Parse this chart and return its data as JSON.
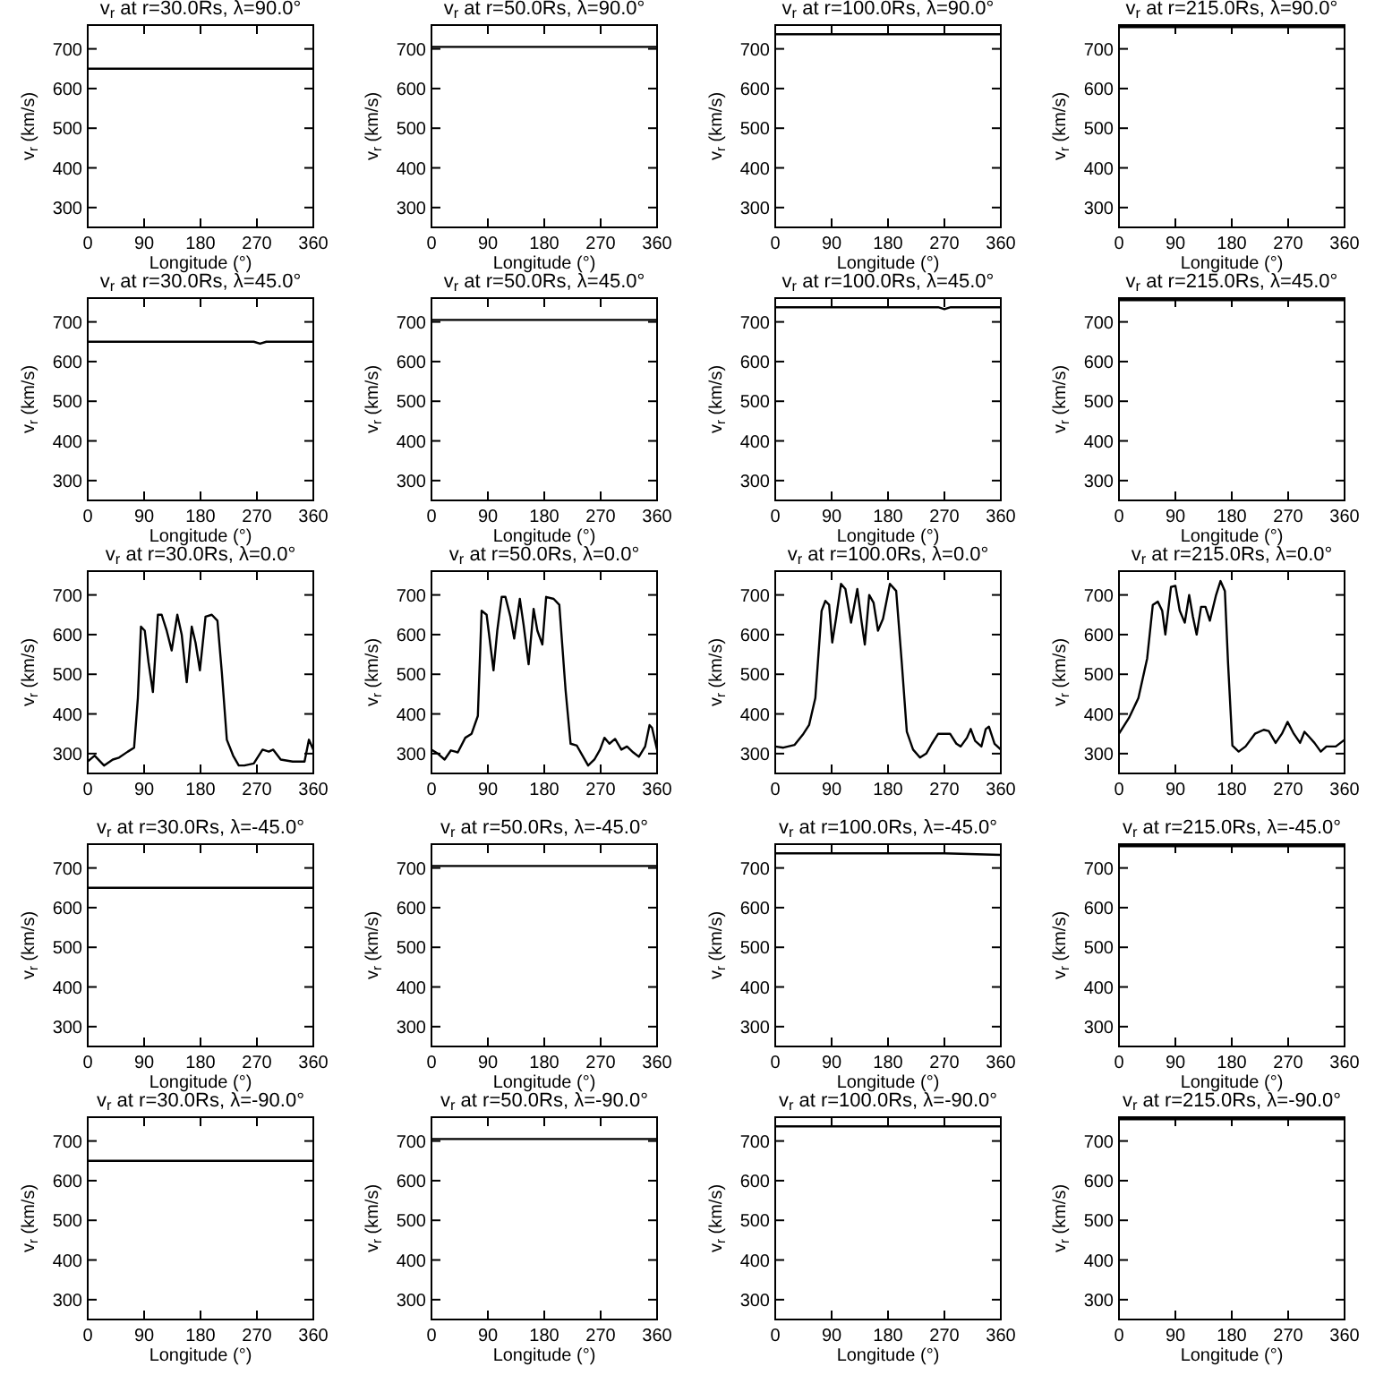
{
  "chart_data": [
    {
      "type": "line",
      "title": "v$_{r}$ at r=30.0Rs, λ=90.0°",
      "xlabel": "Longitude (°)",
      "ylabel": "v$_{r}$ (km/s)",
      "xlim": [
        0,
        360
      ],
      "ylim": [
        250,
        760
      ],
      "xticks": [
        0,
        90,
        180,
        270,
        360
      ],
      "yticks": [
        300,
        400,
        500,
        600,
        700
      ],
      "series": [
        {
          "color": "#000000",
          "x": [
            0,
            360
          ],
          "values": [
            650,
            650
          ]
        }
      ]
    },
    {
      "type": "line",
      "title": "v$_{r}$ at r=50.0Rs, λ=90.0°",
      "xlabel": "Longitude (°)",
      "ylabel": "v$_{r}$ (km/s)",
      "xlim": [
        0,
        360
      ],
      "ylim": [
        250,
        760
      ],
      "xticks": [
        0,
        90,
        180,
        270,
        360
      ],
      "yticks": [
        300,
        400,
        500,
        600,
        700
      ],
      "series": [
        {
          "color": "#000000",
          "x": [
            0,
            360
          ],
          "values": [
            705,
            705
          ]
        }
      ]
    },
    {
      "type": "line",
      "title": "v$_{r}$ at r=100.0Rs, λ=90.0°",
      "xlabel": "Longitude (°)",
      "ylabel": "v$_{r}$ (km/s)",
      "xlim": [
        0,
        360
      ],
      "ylim": [
        250,
        760
      ],
      "xticks": [
        0,
        90,
        180,
        270,
        360
      ],
      "yticks": [
        300,
        400,
        500,
        600,
        700
      ],
      "series": [
        {
          "color": "#000000",
          "x": [
            0,
            360
          ],
          "values": [
            737,
            737
          ]
        }
      ]
    },
    {
      "type": "line",
      "title": "v$_{r}$ at r=215.0Rs, λ=90.0°",
      "xlabel": "Longitude (°)",
      "ylabel": "v$_{r}$ (km/s)",
      "xlim": [
        0,
        360
      ],
      "ylim": [
        250,
        760
      ],
      "xticks": [
        0,
        90,
        180,
        270,
        360
      ],
      "yticks": [
        300,
        400,
        500,
        600,
        700
      ],
      "series": [
        {
          "color": "#000000",
          "x": [
            0,
            360
          ],
          "values": [
            755,
            755
          ]
        }
      ]
    },
    {
      "type": "line",
      "title": "v$_{r}$ at r=30.0Rs, λ=45.0°",
      "xlabel": "Longitude (°)",
      "ylabel": "v$_{r}$ (km/s)",
      "xlim": [
        0,
        360
      ],
      "ylim": [
        250,
        760
      ],
      "xticks": [
        0,
        90,
        180,
        270,
        360
      ],
      "yticks": [
        300,
        400,
        500,
        600,
        700
      ],
      "series": [
        {
          "color": "#000000",
          "x": [
            0,
            265,
            275,
            285,
            360
          ],
          "values": [
            650,
            650,
            645,
            650,
            650
          ]
        }
      ]
    },
    {
      "type": "line",
      "title": "v$_{r}$ at r=50.0Rs, λ=45.0°",
      "xlabel": "Longitude (°)",
      "ylabel": "v$_{r}$ (km/s)",
      "xlim": [
        0,
        360
      ],
      "ylim": [
        250,
        760
      ],
      "xticks": [
        0,
        90,
        180,
        270,
        360
      ],
      "yticks": [
        300,
        400,
        500,
        600,
        700
      ],
      "series": [
        {
          "color": "#000000",
          "x": [
            0,
            360
          ],
          "values": [
            705,
            705
          ]
        }
      ]
    },
    {
      "type": "line",
      "title": "v$_{r}$ at r=100.0Rs, λ=45.0°",
      "xlabel": "Longitude (°)",
      "ylabel": "v$_{r}$ (km/s)",
      "xlim": [
        0,
        360
      ],
      "ylim": [
        250,
        760
      ],
      "xticks": [
        0,
        90,
        180,
        270,
        360
      ],
      "yticks": [
        300,
        400,
        500,
        600,
        700
      ],
      "series": [
        {
          "color": "#000000",
          "x": [
            0,
            260,
            270,
            280,
            360
          ],
          "values": [
            737,
            737,
            732,
            737,
            737
          ]
        }
      ]
    },
    {
      "type": "line",
      "title": "v$_{r}$ at r=215.0Rs, λ=45.0°",
      "xlabel": "Longitude (°)",
      "ylabel": "v$_{r}$ (km/s)",
      "xlim": [
        0,
        360
      ],
      "ylim": [
        250,
        760
      ],
      "xticks": [
        0,
        90,
        180,
        270,
        360
      ],
      "yticks": [
        300,
        400,
        500,
        600,
        700
      ],
      "series": [
        {
          "color": "#000000",
          "x": [
            0,
            360
          ],
          "values": [
            755,
            755
          ]
        }
      ]
    },
    {
      "type": "line",
      "title": "v$_{r}$ at r=30.0Rs, λ=0.0°",
      "ylabel": "v$_{r}$ (km/s)",
      "xlim": [
        0,
        360
      ],
      "ylim": [
        250,
        760
      ],
      "xticks": [
        0,
        90,
        180,
        270,
        360
      ],
      "yticks": [
        300,
        400,
        500,
        600,
        700
      ],
      "series": [
        {
          "color": "#000000",
          "x": [
            0,
            11,
            26,
            40,
            50,
            64,
            74,
            80,
            85,
            91,
            97,
            104,
            112,
            118,
            126,
            134,
            143,
            150,
            158,
            166,
            172,
            179,
            188,
            198,
            207,
            214,
            222,
            232,
            241,
            250,
            265,
            279,
            289,
            296,
            308,
            327,
            346,
            353,
            360
          ],
          "values": [
            280,
            295,
            270,
            285,
            290,
            305,
            315,
            440,
            620,
            610,
            530,
            455,
            650,
            650,
            610,
            560,
            650,
            600,
            480,
            620,
            580,
            510,
            645,
            650,
            635,
            505,
            335,
            295,
            270,
            270,
            275,
            310,
            305,
            310,
            285,
            280,
            280,
            335,
            310
          ]
        }
      ]
    },
    {
      "type": "line",
      "title": "v$_{r}$ at r=50.0Rs, λ=0.0°",
      "ylabel": "v$_{r}$ (km/s)",
      "xlim": [
        0,
        360
      ],
      "ylim": [
        250,
        760
      ],
      "xticks": [
        0,
        90,
        180,
        270,
        360
      ],
      "yticks": [
        300,
        400,
        500,
        600,
        700
      ],
      "series": [
        {
          "color": "#000000",
          "x": [
            0,
            10,
            21,
            31,
            42,
            54,
            64,
            74,
            80,
            88,
            99,
            105,
            112,
            118,
            126,
            132,
            141,
            147,
            155,
            163,
            169,
            177,
            183,
            195,
            204,
            214,
            222,
            232,
            241,
            250,
            260,
            269,
            276,
            284,
            293,
            303,
            312,
            322,
            331,
            341,
            348,
            352,
            360
          ],
          "values": [
            310,
            300,
            285,
            308,
            303,
            340,
            350,
            395,
            660,
            650,
            510,
            610,
            695,
            695,
            645,
            590,
            690,
            625,
            525,
            665,
            610,
            575,
            695,
            690,
            675,
            460,
            325,
            320,
            295,
            270,
            285,
            310,
            340,
            325,
            337,
            310,
            318,
            303,
            292,
            318,
            372,
            365,
            310
          ]
        }
      ]
    },
    {
      "type": "line",
      "title": "v$_{r}$ at r=100.0Rs, λ=0.0°",
      "ylabel": "v$_{r}$ (km/s)",
      "xlim": [
        0,
        360
      ],
      "ylim": [
        250,
        760
      ],
      "xticks": [
        0,
        90,
        180,
        270,
        360
      ],
      "yticks": [
        300,
        400,
        500,
        600,
        700
      ],
      "series": [
        {
          "color": "#000000",
          "x": [
            0,
            13,
            31,
            45,
            54,
            64,
            74,
            80,
            86,
            91,
            97,
            105,
            112,
            121,
            131,
            138,
            143,
            150,
            157,
            164,
            172,
            183,
            193,
            202,
            210,
            220,
            231,
            241,
            250,
            260,
            269,
            279,
            289,
            296,
            306,
            312,
            319,
            329,
            336,
            341,
            350,
            360
          ],
          "values": [
            318,
            315,
            322,
            350,
            372,
            440,
            660,
            685,
            675,
            580,
            640,
            728,
            715,
            630,
            715,
            630,
            575,
            700,
            680,
            610,
            640,
            728,
            710,
            528,
            355,
            310,
            290,
            300,
            325,
            350,
            350,
            350,
            325,
            318,
            340,
            362,
            332,
            318,
            362,
            368,
            325,
            310
          ]
        }
      ]
    },
    {
      "type": "line",
      "title": "v$_{r}$ at r=215.0Rs, λ=0.0°",
      "ylabel": "v$_{r}$ (km/s)",
      "xlim": [
        0,
        360
      ],
      "ylim": [
        250,
        760
      ],
      "xticks": [
        0,
        90,
        180,
        270,
        360
      ],
      "yticks": [
        300,
        400,
        500,
        600,
        700
      ],
      "series": [
        {
          "color": "#000000",
          "x": [
            0,
            16,
            31,
            45,
            54,
            62,
            69,
            74,
            83,
            90,
            97,
            105,
            112,
            118,
            124,
            131,
            138,
            145,
            155,
            162,
            169,
            174,
            181,
            191,
            202,
            217,
            231,
            239,
            250,
            260,
            269,
            279,
            289,
            296,
            303,
            312,
            322,
            331,
            346,
            360
          ],
          "values": [
            350,
            390,
            440,
            540,
            675,
            683,
            660,
            600,
            720,
            723,
            660,
            630,
            700,
            645,
            600,
            670,
            670,
            635,
            700,
            735,
            710,
            530,
            320,
            305,
            318,
            350,
            360,
            357,
            327,
            350,
            380,
            350,
            327,
            355,
            343,
            327,
            305,
            318,
            318,
            335
          ]
        }
      ]
    },
    {
      "type": "line",
      "title": "v$_{r}$ at r=30.0Rs, λ=-45.0°",
      "xlabel": "Longitude (°)",
      "ylabel": "v$_{r}$ (km/s)",
      "xlim": [
        0,
        360
      ],
      "ylim": [
        250,
        760
      ],
      "xticks": [
        0,
        90,
        180,
        270,
        360
      ],
      "yticks": [
        300,
        400,
        500,
        600,
        700
      ],
      "series": [
        {
          "color": "#000000",
          "x": [
            0,
            360
          ],
          "values": [
            650,
            650
          ]
        }
      ]
    },
    {
      "type": "line",
      "title": "v$_{r}$ at r=50.0Rs, λ=-45.0°",
      "xlabel": "Longitude (°)",
      "ylabel": "v$_{r}$ (km/s)",
      "xlim": [
        0,
        360
      ],
      "ylim": [
        250,
        760
      ],
      "xticks": [
        0,
        90,
        180,
        270,
        360
      ],
      "yticks": [
        300,
        400,
        500,
        600,
        700
      ],
      "series": [
        {
          "color": "#000000",
          "x": [
            0,
            360
          ],
          "values": [
            705,
            705
          ]
        }
      ]
    },
    {
      "type": "line",
      "title": "v$_{r}$ at r=100.0Rs, λ=-45.0°",
      "xlabel": "Longitude (°)",
      "ylabel": "v$_{r}$ (km/s)",
      "xlim": [
        0,
        360
      ],
      "ylim": [
        250,
        760
      ],
      "xticks": [
        0,
        90,
        180,
        270,
        360
      ],
      "yticks": [
        300,
        400,
        500,
        600,
        700
      ],
      "series": [
        {
          "color": "#000000",
          "x": [
            0,
            270,
            360
          ],
          "values": [
            737,
            737,
            733
          ]
        }
      ]
    },
    {
      "type": "line",
      "title": "v$_{r}$ at r=215.0Rs, λ=-45.0°",
      "xlabel": "Longitude (°)",
      "ylabel": "v$_{r}$ (km/s)",
      "xlim": [
        0,
        360
      ],
      "ylim": [
        250,
        760
      ],
      "xticks": [
        0,
        90,
        180,
        270,
        360
      ],
      "yticks": [
        300,
        400,
        500,
        600,
        700
      ],
      "series": [
        {
          "color": "#000000",
          "x": [
            0,
            360
          ],
          "values": [
            755,
            755
          ]
        }
      ]
    },
    {
      "type": "line",
      "title": "v$_{r}$ at r=30.0Rs, λ=-90.0°",
      "xlabel": "Longitude (°)",
      "ylabel": "v$_{r}$ (km/s)",
      "xlim": [
        0,
        360
      ],
      "ylim": [
        250,
        760
      ],
      "xticks": [
        0,
        90,
        180,
        270,
        360
      ],
      "yticks": [
        300,
        400,
        500,
        600,
        700
      ],
      "series": [
        {
          "color": "#000000",
          "x": [
            0,
            360
          ],
          "values": [
            650,
            650
          ]
        }
      ]
    },
    {
      "type": "line",
      "title": "v$_{r}$ at r=50.0Rs, λ=-90.0°",
      "xlabel": "Longitude (°)",
      "ylabel": "v$_{r}$ (km/s)",
      "xlim": [
        0,
        360
      ],
      "ylim": [
        250,
        760
      ],
      "xticks": [
        0,
        90,
        180,
        270,
        360
      ],
      "yticks": [
        300,
        400,
        500,
        600,
        700
      ],
      "series": [
        {
          "color": "#000000",
          "x": [
            0,
            360
          ],
          "values": [
            705,
            705
          ]
        }
      ]
    },
    {
      "type": "line",
      "title": "v$_{r}$ at r=100.0Rs, λ=-90.0°",
      "xlabel": "Longitude (°)",
      "ylabel": "v$_{r}$ (km/s)",
      "xlim": [
        0,
        360
      ],
      "ylim": [
        250,
        760
      ],
      "xticks": [
        0,
        90,
        180,
        270,
        360
      ],
      "yticks": [
        300,
        400,
        500,
        600,
        700
      ],
      "series": [
        {
          "color": "#000000",
          "x": [
            0,
            360
          ],
          "values": [
            737,
            737
          ]
        }
      ]
    },
    {
      "type": "line",
      "title": "v$_{r}$ at r=215.0Rs, λ=-90.0°",
      "xlabel": "Longitude (°)",
      "ylabel": "v$_{r}$ (km/s)",
      "xlim": [
        0,
        360
      ],
      "ylim": [
        250,
        760
      ],
      "xticks": [
        0,
        90,
        180,
        270,
        360
      ],
      "yticks": [
        300,
        400,
        500,
        600,
        700
      ],
      "series": [
        {
          "color": "#000000",
          "x": [
            0,
            360
          ],
          "values": [
            755,
            755
          ]
        }
      ]
    }
  ]
}
